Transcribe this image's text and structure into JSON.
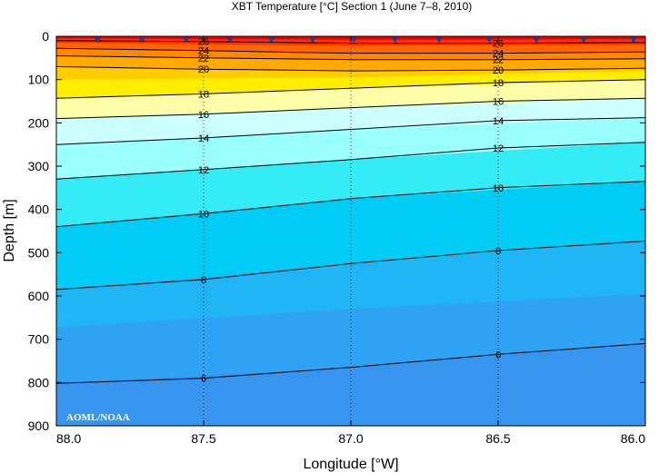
{
  "chart_data": {
    "type": "contour",
    "title": "XBT Temperature [°C] Section 1 (June 7–8, 2010)",
    "xlabel": "Longitude [°W]",
    "ylabel": "Depth [m]",
    "xlim": [
      88.0,
      86.0
    ],
    "ylim": [
      0,
      900
    ],
    "x_reversed": true,
    "y_inverted": true,
    "x_ticks": [
      88.0,
      87.5,
      87.0,
      86.5,
      86.0
    ],
    "x_tick_labels": [
      "88.0",
      "87.5",
      "87.0",
      "86.5",
      "86.0"
    ],
    "y_ticks": [
      0,
      100,
      200,
      300,
      400,
      500,
      600,
      700,
      800,
      900
    ],
    "y_tick_labels": [
      "0",
      "100",
      "200",
      "300",
      "400",
      "500",
      "600",
      "700",
      "800",
      "900"
    ],
    "grid": "dotted at major x ticks",
    "xbt_stations_lon": [
      87.86,
      87.71,
      87.56,
      87.41,
      87.27,
      87.13,
      86.99,
      86.85,
      86.7,
      86.53,
      86.37,
      86.21,
      86.04
    ],
    "contours": [
      {
        "level": 26,
        "label": "26",
        "points": [
          [
            88.0,
            10
          ],
          [
            87.5,
            12
          ],
          [
            87.0,
            16
          ],
          [
            86.5,
            16
          ],
          [
            86.0,
            14
          ]
        ]
      },
      {
        "level": 24,
        "label": "24",
        "points": [
          [
            88.0,
            28
          ],
          [
            87.5,
            33
          ],
          [
            87.2,
            37
          ],
          [
            87.0,
            39
          ],
          [
            86.5,
            39
          ],
          [
            86.0,
            36
          ]
        ]
      },
      {
        "level": 22,
        "label": "22",
        "points": [
          [
            88.0,
            45
          ],
          [
            87.5,
            50
          ],
          [
            87.0,
            54
          ],
          [
            86.5,
            54
          ],
          [
            86.0,
            52
          ]
        ]
      },
      {
        "level": 20,
        "label": "20",
        "points": [
          [
            88.0,
            70
          ],
          [
            87.5,
            76
          ],
          [
            87.0,
            80
          ],
          [
            86.5,
            78
          ],
          [
            86.0,
            74
          ]
        ]
      },
      {
        "level": 18,
        "label": "18",
        "points": [
          [
            88.0,
            143
          ],
          [
            87.5,
            133
          ],
          [
            87.0,
            120
          ],
          [
            86.5,
            107
          ],
          [
            86.0,
            100
          ]
        ]
      },
      {
        "level": 16,
        "label": "16",
        "points": [
          [
            88.0,
            190
          ],
          [
            87.5,
            180
          ],
          [
            87.0,
            165
          ],
          [
            86.5,
            150
          ],
          [
            86.0,
            143
          ]
        ]
      },
      {
        "level": 14,
        "label": "14",
        "points": [
          [
            88.0,
            250
          ],
          [
            87.5,
            235
          ],
          [
            87.0,
            215
          ],
          [
            86.5,
            195
          ],
          [
            86.0,
            188
          ]
        ]
      },
      {
        "level": 12,
        "label": "12",
        "points": [
          [
            88.0,
            330
          ],
          [
            87.5,
            308
          ],
          [
            87.0,
            285
          ],
          [
            86.5,
            258
          ],
          [
            86.0,
            245
          ]
        ]
      },
      {
        "level": 10,
        "label": "10",
        "points": [
          [
            88.0,
            440
          ],
          [
            87.5,
            410
          ],
          [
            87.0,
            375
          ],
          [
            86.5,
            350
          ],
          [
            86.0,
            335
          ]
        ]
      },
      {
        "level": 8,
        "label": "8",
        "points": [
          [
            88.0,
            585
          ],
          [
            87.5,
            562
          ],
          [
            87.0,
            525
          ],
          [
            86.5,
            495
          ],
          [
            86.0,
            473
          ]
        ]
      },
      {
        "level": 6,
        "label": "6",
        "points": [
          [
            88.0,
            802
          ],
          [
            87.5,
            790
          ],
          [
            87.0,
            765
          ],
          [
            86.5,
            735
          ],
          [
            86.0,
            710
          ]
        ]
      }
    ],
    "color_band_boundaries": [
      {
        "points": [
          [
            88.0,
            5
          ],
          [
            87.0,
            8
          ],
          [
            86.0,
            7
          ]
        ],
        "below_color": "#ff3300"
      },
      {
        "points": [
          [
            88.0,
            15
          ],
          [
            87.0,
            22
          ],
          [
            86.0,
            20
          ]
        ],
        "below_color": "#ff6600"
      },
      {
        "points": [
          [
            88.0,
            28
          ],
          [
            87.0,
            39
          ],
          [
            86.0,
            36
          ]
        ],
        "below_color": "#ff8800"
      },
      {
        "points": [
          [
            88.0,
            45
          ],
          [
            87.0,
            54
          ],
          [
            86.0,
            52
          ]
        ],
        "below_color": "#ffaa00"
      },
      {
        "points": [
          [
            88.0,
            70
          ],
          [
            87.0,
            80
          ],
          [
            86.0,
            74
          ]
        ],
        "below_color": "#ffcc00"
      },
      {
        "points": [
          [
            88.0,
            100
          ],
          [
            87.0,
            95
          ],
          [
            86.0,
            80
          ]
        ],
        "below_color": "#ffee00"
      },
      {
        "points": [
          [
            88.0,
            143
          ],
          [
            87.0,
            120
          ],
          [
            86.0,
            100
          ]
        ],
        "below_color": "#ffffaa"
      },
      {
        "points": [
          [
            88.0,
            190
          ],
          [
            87.0,
            165
          ],
          [
            86.0,
            143
          ]
        ],
        "below_color": "#ccffff"
      },
      {
        "points": [
          [
            88.0,
            250
          ],
          [
            87.0,
            215
          ],
          [
            86.0,
            188
          ]
        ],
        "below_color": "#99ffff"
      },
      {
        "points": [
          [
            88.0,
            330
          ],
          [
            87.0,
            285
          ],
          [
            86.0,
            245
          ]
        ],
        "below_color": "#33ecf5"
      },
      {
        "points": [
          [
            88.0,
            440
          ],
          [
            87.0,
            375
          ],
          [
            86.0,
            335
          ]
        ],
        "below_color": "#00ccf5"
      },
      {
        "points": [
          [
            88.0,
            585
          ],
          [
            87.0,
            525
          ],
          [
            86.0,
            473
          ]
        ],
        "below_color": "#20b6f6"
      },
      {
        "points": [
          [
            88.0,
            672
          ],
          [
            87.0,
            630
          ],
          [
            86.0,
            595
          ]
        ],
        "below_color": "#2fa2f4"
      },
      {
        "points": [
          [
            88.0,
            802
          ],
          [
            87.0,
            765
          ],
          [
            86.0,
            710
          ]
        ],
        "below_color": "#3795ef"
      }
    ],
    "top_color": "#ee0000",
    "colors": {
      "marker": "#1a3aa8",
      "contour_line": "#000000",
      "grid": "#000000"
    },
    "watermark": "AOML/NOAA"
  }
}
